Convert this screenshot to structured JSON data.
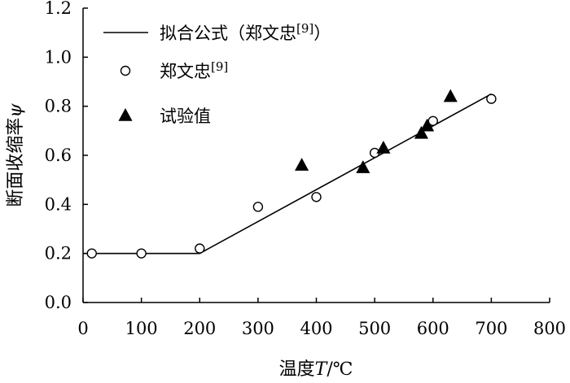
{
  "chart_data": {
    "type": "scatter",
    "xlabel": "温度T/℃",
    "ylabel": "断面收缩率ψ",
    "xlim": [
      0,
      800
    ],
    "ylim": [
      0.0,
      1.2
    ],
    "x_ticks": [
      "0",
      "100",
      "200",
      "300",
      "400",
      "500",
      "600",
      "700",
      "800"
    ],
    "y_ticks": [
      "0.0",
      "0.2",
      "0.4",
      "0.6",
      "0.8",
      "1.0",
      "1.2"
    ],
    "grid": false,
    "legend_position": "top-left",
    "series": [
      {
        "name": "拟合公式（郑文忠[9]）",
        "kind": "line",
        "x": [
          0,
          200,
          700
        ],
        "y": [
          0.2,
          0.2,
          0.85
        ]
      },
      {
        "name": "郑文忠[9]",
        "kind": "open-circle",
        "x": [
          15,
          100,
          200,
          300,
          400,
          500,
          600,
          700
        ],
        "y": [
          0.2,
          0.2,
          0.22,
          0.39,
          0.43,
          0.61,
          0.74,
          0.83
        ]
      },
      {
        "name": "试验值",
        "kind": "filled-triangle",
        "x": [
          375,
          480,
          515,
          580,
          590,
          630
        ],
        "y": [
          0.56,
          0.55,
          0.63,
          0.69,
          0.72,
          0.84
        ]
      }
    ]
  }
}
